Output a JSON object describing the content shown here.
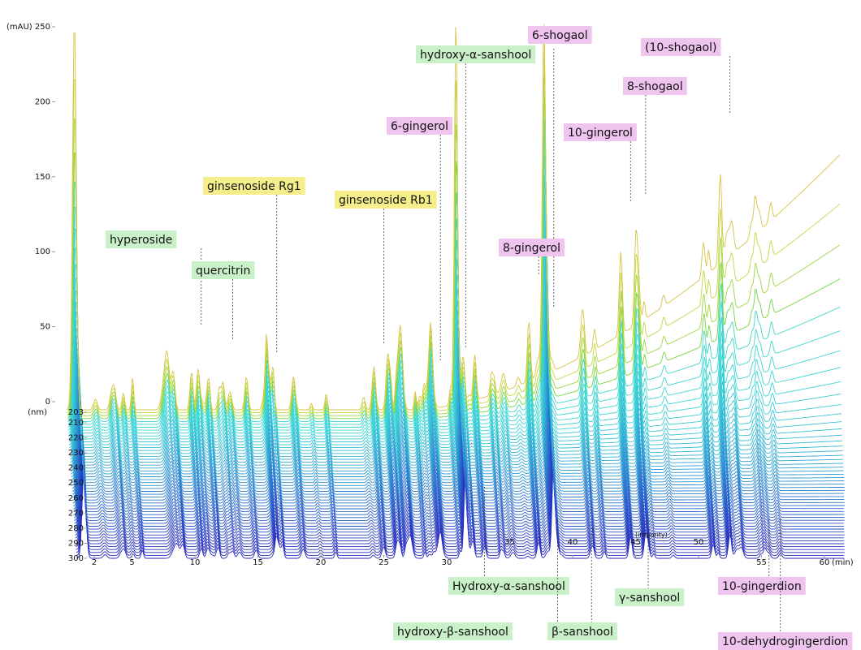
{
  "chart_data": {
    "type": "waterfall",
    "y_label": "(mAU)",
    "ylim": [
      0,
      250
    ],
    "yticks": [
      0,
      50,
      100,
      150,
      200,
      250
    ],
    "z_label": "(nm)",
    "zlim": [
      203,
      300
    ],
    "zticks": [
      203,
      210,
      220,
      230,
      240,
      250,
      260,
      270,
      280,
      290,
      300
    ],
    "x_label": "(min)",
    "xlim": [
      0,
      60
    ],
    "xticks": [
      2,
      5,
      10,
      15,
      20,
      25,
      30,
      35,
      40,
      45,
      50,
      55,
      60
    ],
    "note": "(impurity)",
    "annotations": [
      {
        "label": "hyperoside",
        "color": "#c9f0c9",
        "x": 10.5
      },
      {
        "label": "quercitrin",
        "color": "#c9f0c9",
        "x": 13
      },
      {
        "label": "ginsenoside Rg1",
        "color": "#f5ee8a",
        "x": 16.5
      },
      {
        "label": "ginsenoside Rb1",
        "color": "#f5ee8a",
        "x": 25
      },
      {
        "label": "6-gingerol",
        "color": "#efc4ef",
        "x": 29.5
      },
      {
        "label": "hydroxy-α-sanshool",
        "color": "#c9f0c9",
        "x": 31.5
      },
      {
        "label": "6-shogaol",
        "color": "#efc4ef",
        "x": 38.5
      },
      {
        "label": "8-gingerol",
        "color": "#efc4ef",
        "x": 37.3
      },
      {
        "label": "10-gingerol",
        "color": "#efc4ef",
        "x": 44.6
      },
      {
        "label": "8-shogaol",
        "color": "#efc4ef",
        "x": 45.8
      },
      {
        "label": "(10-shogaol)",
        "color": "#efc4ef",
        "x": 52.5
      },
      {
        "label": "Hydroxy-α-sanshool",
        "color": "#c9f0c9",
        "x": 33
      },
      {
        "label": "hydroxy-β-sanshool",
        "color": "#c9f0c9",
        "x": 38.8
      },
      {
        "label": "β-sanshool",
        "color": "#c9f0c9",
        "x": 41.5
      },
      {
        "label": "γ-sanshool",
        "color": "#c9f0c9",
        "x": 46
      },
      {
        "label": "10-gingerdion",
        "color": "#efc4ef",
        "x": 55.6
      },
      {
        "label": "10-dehydrogingerdion",
        "color": "#efc4ef",
        "x": 56.5
      }
    ]
  }
}
